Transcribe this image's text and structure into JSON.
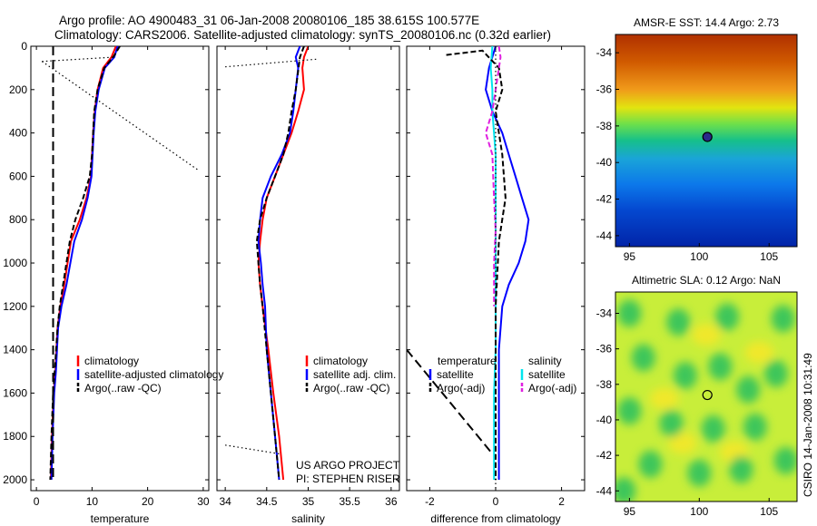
{
  "figure": {
    "title_line1": "Argo profile: AO 4900483_31 06-Jan-2008 20080106_185 38.615S 100.577E",
    "title_line2": "Climatology: CARS2006. Satellite-adjusted climatology: synTS_20080106.nc (0.32d earlier)",
    "side_caption": "CSIRO 14-Jan-2008 10:31:49",
    "project_line1": "US ARGO PROJECT",
    "project_line2": "PI: STEPHEN RISER"
  },
  "colors": {
    "climatology": "#ff0000",
    "satellite": "#0000ff",
    "argo": "#000000",
    "satellite_diff_sal": "#00e5ee",
    "argo_diff_sal": "#e020e0"
  },
  "chart_data": [
    {
      "type": "line",
      "id": "temperature",
      "xlabel": "temperature",
      "xlim": [
        -1,
        31
      ],
      "ylim": [
        0,
        2050
      ],
      "y_reversed": true,
      "xticks": [
        0,
        10,
        20,
        30
      ],
      "yticks": [
        0,
        200,
        400,
        600,
        800,
        1000,
        1200,
        1400,
        1600,
        1800,
        2000
      ],
      "legend": [
        "climatology",
        "satellite-adjusted climatology",
        "Argo(..raw -QC)"
      ],
      "series": [
        {
          "name": "climatology",
          "color_key": "climatology",
          "style": "solid",
          "x": [
            14.3,
            13.5,
            12.0,
            11.0,
            10.5,
            10.2,
            10.0,
            9.8,
            9.0,
            7.8,
            6.2,
            5.0,
            4.3,
            3.8,
            3.4,
            3.1,
            2.8,
            2.6
          ],
          "y": [
            0,
            50,
            100,
            200,
            300,
            400,
            500,
            600,
            700,
            800,
            900,
            1100,
            1200,
            1300,
            1500,
            1600,
            1800,
            2000
          ]
        },
        {
          "name": "satellite-adjusted climatology",
          "color_key": "satellite",
          "style": "solid",
          "x": [
            14.6,
            14.0,
            12.3,
            11.2,
            10.6,
            10.3,
            10.1,
            9.9,
            9.2,
            8.2,
            6.8,
            5.4,
            4.5,
            3.9,
            3.5,
            3.2,
            2.9,
            2.7
          ],
          "y": [
            0,
            50,
            100,
            200,
            300,
            400,
            500,
            600,
            700,
            800,
            900,
            1100,
            1200,
            1300,
            1500,
            1600,
            1800,
            2000
          ]
        },
        {
          "name": "Argo(..raw -QC)",
          "color_key": "argo",
          "style": "dashed",
          "x": [
            15.0,
            13.8,
            12.2,
            11.0,
            10.4,
            10.2,
            10.0,
            9.6,
            8.4,
            7.0,
            6.0,
            4.8,
            4.2,
            3.8,
            3.3,
            3.0,
            2.7,
            2.5
          ],
          "y": [
            0,
            50,
            100,
            200,
            300,
            400,
            500,
            600,
            700,
            800,
            900,
            1100,
            1200,
            1300,
            1500,
            1600,
            1800,
            2000
          ]
        },
        {
          "name": "raw vertical",
          "color_key": "argo",
          "style": "bigdash",
          "x": [
            3.0,
            3.0
          ],
          "y": [
            0,
            2000
          ]
        },
        {
          "name": "raw dotted 1",
          "color_key": "argo",
          "style": "dotted",
          "x": [
            1.0,
            14.0
          ],
          "y": [
            70,
            50
          ]
        },
        {
          "name": "raw dotted 2",
          "color_key": "argo",
          "style": "dotted",
          "x": [
            1.0,
            29.0
          ],
          "y": [
            70,
            570
          ]
        }
      ]
    },
    {
      "type": "line",
      "id": "salinity",
      "xlabel": "salinity",
      "xlim": [
        33.9,
        36.1
      ],
      "ylim": [
        0,
        2050
      ],
      "y_reversed": true,
      "xticks": [
        34,
        34.5,
        35,
        35.5,
        36
      ],
      "xtick_labels": [
        "34",
        "34.5",
        "35",
        "35.5",
        "36"
      ],
      "legend": [
        "climatology",
        "satellite adj. clim.",
        "Argo(..raw -QC)"
      ],
      "series": [
        {
          "name": "climatology",
          "color_key": "climatology",
          "style": "solid",
          "x": [
            35.0,
            34.95,
            34.93,
            34.95,
            34.88,
            34.8,
            34.7,
            34.6,
            34.5,
            34.45,
            34.42,
            34.4,
            34.42,
            34.45,
            34.52,
            34.58,
            34.65,
            34.7
          ],
          "y": [
            0,
            50,
            100,
            200,
            300,
            400,
            500,
            600,
            700,
            800,
            900,
            1000,
            1100,
            1200,
            1400,
            1600,
            1800,
            2000
          ]
        },
        {
          "name": "satellite adj. clim.",
          "color_key": "satellite",
          "style": "solid",
          "x": [
            34.9,
            34.85,
            34.88,
            34.85,
            34.82,
            34.78,
            34.68,
            34.55,
            34.45,
            34.42,
            34.4,
            34.43,
            34.45,
            34.48,
            34.5,
            34.55,
            34.6,
            34.65
          ],
          "y": [
            0,
            50,
            100,
            200,
            300,
            400,
            500,
            600,
            700,
            800,
            900,
            1000,
            1100,
            1200,
            1400,
            1600,
            1800,
            2000
          ]
        },
        {
          "name": "Argo(..raw -QC)",
          "color_key": "argo",
          "style": "dashed",
          "x": [
            34.95,
            34.9,
            34.85,
            34.8,
            34.76,
            34.7,
            34.6,
            34.5,
            34.42,
            34.38,
            34.4,
            34.42,
            34.45,
            34.5,
            34.55,
            34.6,
            34.65
          ],
          "y": [
            0,
            50,
            200,
            300,
            400,
            500,
            600,
            700,
            800,
            900,
            1000,
            1100,
            1200,
            1400,
            1600,
            1800,
            2000
          ]
        },
        {
          "name": "raw dotted 1",
          "color_key": "argo",
          "style": "dotted",
          "x": [
            34.0,
            35.1
          ],
          "y": [
            95,
            60
          ]
        },
        {
          "name": "raw dotted 2",
          "color_key": "argo",
          "style": "dotted",
          "x": [
            34.0,
            34.65
          ],
          "y": [
            1840,
            1880
          ]
        }
      ]
    },
    {
      "type": "line",
      "id": "difference",
      "xlabel": "difference from climatology",
      "xlim": [
        -2.7,
        2.7
      ],
      "ylim": [
        0,
        2050
      ],
      "y_reversed": true,
      "xticks": [
        -2,
        0,
        2
      ],
      "legend_temperature_title": "temperature",
      "legend_temperature": [
        "satellite",
        "Argo(-adj)"
      ],
      "legend_salinity_title": "salinity",
      "legend_salinity": [
        "satellite",
        "Argo(-adj)"
      ],
      "series": [
        {
          "name": "temperature satellite",
          "color_key": "satellite",
          "style": "solid",
          "x": [
            0.0,
            -0.2,
            -0.3,
            -0.1,
            0.2,
            0.4,
            0.6,
            0.8,
            1.0,
            0.9,
            0.7,
            0.4,
            0.2,
            0.1,
            0.1,
            0.1,
            0.1
          ],
          "y": [
            0,
            100,
            200,
            300,
            400,
            500,
            600,
            700,
            800,
            900,
            1000,
            1100,
            1200,
            1400,
            1600,
            1800,
            2000
          ]
        },
        {
          "name": "salinity satellite",
          "color_key": "satellite_diff_sal",
          "style": "solid",
          "x": [
            -0.1,
            -0.15,
            -0.1,
            -0.1,
            -0.05,
            0.0,
            0.0,
            0.0,
            0.0,
            0.0,
            0.0,
            -0.05,
            -0.05,
            -0.05,
            -0.05
          ],
          "y": [
            0,
            100,
            200,
            300,
            400,
            500,
            600,
            800,
            1000,
            1200,
            1400,
            1600,
            1800,
            1900,
            2000
          ]
        },
        {
          "name": "temperature Argo(-adj)",
          "color_key": "argo",
          "style": "dashed",
          "x": [
            -1.5,
            -0.4,
            0.1,
            0.2,
            0.0,
            0.1,
            0.2,
            0.3,
            0.1,
            0.0,
            0.0,
            0.0,
            0.0
          ],
          "y": [
            40,
            20,
            100,
            200,
            300,
            400,
            500,
            700,
            900,
            1200,
            1500,
            1800,
            2000
          ]
        },
        {
          "name": "temperature Argo raw",
          "color_key": "argo",
          "style": "bigdash",
          "x": [
            -2.7,
            -0.1
          ],
          "y": [
            1400,
            1880
          ]
        },
        {
          "name": "salinity Argo(-adj)",
          "color_key": "argo_diff_sal",
          "style": "dashed",
          "x": [
            0.1,
            0.15,
            -0.1,
            -0.3,
            -0.1,
            -0.05,
            0.0,
            -0.05,
            -0.05
          ],
          "y": [
            0,
            50,
            300,
            400,
            500,
            700,
            850,
            1000,
            1200
          ]
        },
        {
          "name": "zero line",
          "color_key": "argo",
          "style": "dotted",
          "x": [
            0,
            0
          ],
          "y": [
            0,
            2050
          ]
        }
      ]
    },
    {
      "type": "heatmap",
      "id": "sst_map",
      "title": "AMSR-E SST: 14.4 Argo: 2.73",
      "xlim": [
        94,
        107
      ],
      "ylim": [
        -44.6,
        -33.0
      ],
      "xticks": [
        95,
        100,
        105
      ],
      "yticks": [
        -34,
        -36,
        -38,
        -40,
        -42,
        -44
      ],
      "marker": {
        "lon": 100.58,
        "lat": -38.6,
        "filled": true
      },
      "bands": [
        {
          "lat": -33.0,
          "color": "#b03000"
        },
        {
          "lat": -34.5,
          "color": "#d05a00"
        },
        {
          "lat": -36.0,
          "color": "#f09a1a"
        },
        {
          "lat": -37.0,
          "color": "#e2e410"
        },
        {
          "lat": -37.9,
          "color": "#6ee04a"
        },
        {
          "lat": -38.8,
          "color": "#16c08a"
        },
        {
          "lat": -39.8,
          "color": "#1aa4d8"
        },
        {
          "lat": -41.2,
          "color": "#0c78ea"
        },
        {
          "lat": -42.6,
          "color": "#0448d0"
        },
        {
          "lat": -44.6,
          "color": "#0224a8"
        }
      ]
    },
    {
      "type": "heatmap",
      "id": "sla_map",
      "title": "Altimetric SLA: 0.12 Argo: NaN",
      "xlim": [
        94,
        107
      ],
      "ylim": [
        -44.6,
        -32.8
      ],
      "xticks": [
        95,
        100,
        105
      ],
      "yticks": [
        -34,
        -36,
        -38,
        -40,
        -42,
        -44
      ],
      "marker": {
        "lon": 100.58,
        "lat": -38.6,
        "filled": false
      },
      "background_color": "#c8ee3a",
      "blob_color": "#3cc65a",
      "light_color": "#f0e82a",
      "blobs": [
        {
          "lon": 95.0,
          "lat": -34.0
        },
        {
          "lon": 98.5,
          "lat": -34.5
        },
        {
          "lon": 102.0,
          "lat": -34.2
        },
        {
          "lon": 106.0,
          "lat": -34.3
        },
        {
          "lon": 96.0,
          "lat": -36.5
        },
        {
          "lon": 99.0,
          "lat": -37.5
        },
        {
          "lon": 101.5,
          "lat": -37.0
        },
        {
          "lon": 103.5,
          "lat": -38.3
        },
        {
          "lon": 105.5,
          "lat": -37.4
        },
        {
          "lon": 95.0,
          "lat": -39.5
        },
        {
          "lon": 98.0,
          "lat": -40.2
        },
        {
          "lon": 101.0,
          "lat": -40.5
        },
        {
          "lon": 104.0,
          "lat": -40.4
        },
        {
          "lon": 96.5,
          "lat": -42.5
        },
        {
          "lon": 100.0,
          "lat": -43.0
        },
        {
          "lon": 103.0,
          "lat": -42.8
        },
        {
          "lon": 106.2,
          "lat": -42.3
        },
        {
          "lon": 94.6,
          "lat": -44.0
        }
      ],
      "lights": [
        {
          "lon": 100.5,
          "lat": -35.2
        },
        {
          "lon": 104.3,
          "lat": -36.2
        },
        {
          "lon": 97.5,
          "lat": -38.8
        },
        {
          "lon": 102.5,
          "lat": -41.8
        },
        {
          "lon": 98.8,
          "lat": -41.3
        }
      ]
    }
  ]
}
